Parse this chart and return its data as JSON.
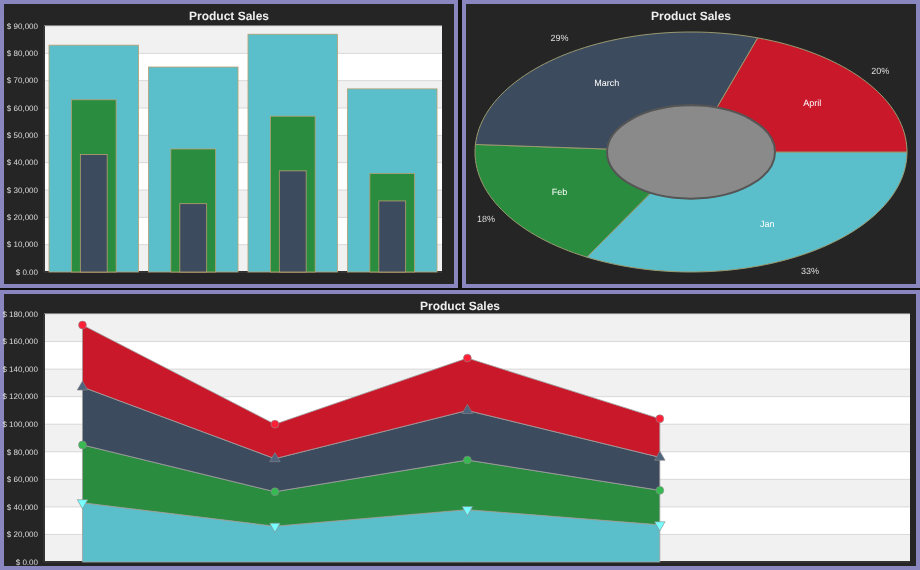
{
  "chart_data": [
    {
      "type": "bar",
      "title": "Product Sales",
      "categories": [
        null,
        null,
        null,
        null
      ],
      "series": [
        {
          "color": "#5bbfcb",
          "values": [
            83000,
            75000,
            87000,
            67000
          ]
        },
        {
          "color": "#2a8c3e",
          "values": [
            63000,
            45000,
            57000,
            36000
          ]
        },
        {
          "color": "#3d4b5e",
          "values": [
            43000,
            25000,
            37000,
            26000
          ]
        }
      ],
      "ylim": [
        0,
        90000
      ],
      "yticks": [
        {
          "value": 0,
          "label": "$ 0.00"
        },
        {
          "value": 10000,
          "label": "$ 10,000"
        },
        {
          "value": 20000,
          "label": "$ 20,000"
        },
        {
          "value": 30000,
          "label": "$ 30,000"
        },
        {
          "value": 40000,
          "label": "$ 40,000"
        },
        {
          "value": 50000,
          "label": "$ 50,000"
        },
        {
          "value": 60000,
          "label": "$ 60,000"
        },
        {
          "value": 70000,
          "label": "$ 70,000"
        },
        {
          "value": 80000,
          "label": "$ 80,000"
        },
        {
          "value": 90000,
          "label": "$ 90,000"
        }
      ],
      "grid": "y"
    },
    {
      "type": "pie",
      "title": "Product Sales",
      "categories": [
        "Jan",
        "Feb",
        "March",
        "April"
      ],
      "values": [
        33,
        18,
        29,
        20
      ],
      "colors": [
        "#5bbfcb",
        "#2a8c3e",
        "#3d4b5e",
        "#c8182a"
      ],
      "value_labels": [
        "33%",
        "18%",
        "29%",
        "20%"
      ]
    },
    {
      "type": "area",
      "title": "Product Sales",
      "stacked": true,
      "categories": [
        null,
        null,
        null,
        null
      ],
      "series": [
        {
          "color": "#5bbfcb",
          "marker": "triangle-down",
          "values": [
            43000,
            26000,
            38000,
            27000
          ]
        },
        {
          "color": "#2a8c3e",
          "marker": "circle",
          "values": [
            42000,
            25000,
            36000,
            25000
          ]
        },
        {
          "color": "#3d4b5e",
          "marker": "triangle",
          "values": [
            42000,
            24000,
            36000,
            24000
          ]
        },
        {
          "color": "#c8182a",
          "marker": "circle",
          "values": [
            45000,
            25000,
            38000,
            28000
          ]
        }
      ],
      "ylim": [
        0,
        180000
      ],
      "yticks": [
        {
          "value": 0,
          "label": "$ 0.00"
        },
        {
          "value": 20000,
          "label": "$ 20,000"
        },
        {
          "value": 40000,
          "label": "$ 40,000"
        },
        {
          "value": 60000,
          "label": "$ 60,000"
        },
        {
          "value": 80000,
          "label": "$ 80,000"
        },
        {
          "value": 100000,
          "label": "$ 100,000"
        },
        {
          "value": 120000,
          "label": "$ 120,000"
        },
        {
          "value": 140000,
          "label": "$ 140,000"
        },
        {
          "value": 160000,
          "label": "$ 160,000"
        },
        {
          "value": 180000,
          "label": "$ 180,000"
        }
      ],
      "grid": "y"
    }
  ]
}
